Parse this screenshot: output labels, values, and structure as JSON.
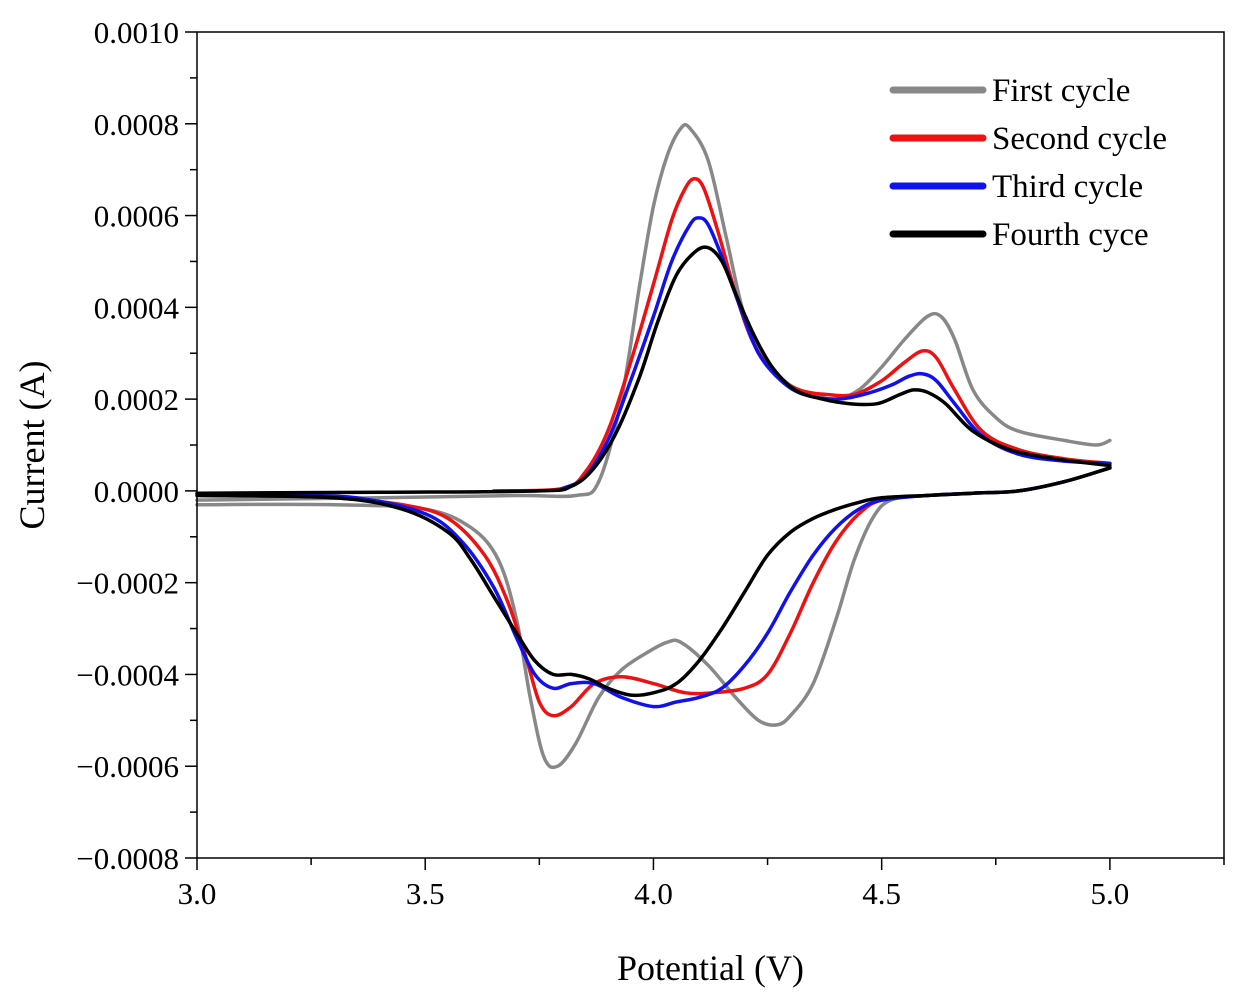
{
  "chart_data": {
    "type": "line",
    "title": "",
    "xlabel": "Potential (V)",
    "ylabel": "Current (A)",
    "xlim": [
      3.0,
      5.25
    ],
    "ylim": [
      -0.0008,
      0.001
    ],
    "x_ticks": [
      3.0,
      3.5,
      4.0,
      4.5,
      5.0
    ],
    "x_tick_labels": [
      "3.0",
      "3.5",
      "4.0",
      "4.5",
      "5.0"
    ],
    "y_ticks": [
      0.001,
      0.0008,
      0.0006,
      0.0004,
      0.0002,
      0.0,
      -0.0002,
      -0.0004,
      -0.0006,
      -0.0008
    ],
    "y_tick_labels": [
      "0.0010",
      "0.0008",
      "0.0006",
      "0.0004",
      "0.0002",
      "0.0000",
      "−0.0002",
      "−0.0004",
      "−0.0006",
      "−0.0008"
    ],
    "grid": false,
    "legend_position": "top-right",
    "series": [
      {
        "name": "First cycle",
        "color": "#888888",
        "anodic": [
          [
            3.0,
            -2e-05
          ],
          [
            3.4,
            -1.5e-05
          ],
          [
            3.7,
            -1e-05
          ],
          [
            3.83,
            -1e-05
          ],
          [
            3.88,
            2e-05
          ],
          [
            3.93,
            0.0002
          ],
          [
            3.97,
            0.00045
          ],
          [
            4.0,
            0.00062
          ],
          [
            4.03,
            0.00073
          ],
          [
            4.06,
            0.00079
          ],
          [
            4.08,
            0.00079
          ],
          [
            4.12,
            0.00072
          ],
          [
            4.16,
            0.00055
          ],
          [
            4.2,
            0.00038
          ],
          [
            4.25,
            0.00028
          ],
          [
            4.3,
            0.00023
          ],
          [
            4.35,
            0.00021
          ],
          [
            4.4,
            0.0002
          ],
          [
            4.45,
            0.00022
          ],
          [
            4.5,
            0.00027
          ],
          [
            4.55,
            0.00033
          ],
          [
            4.6,
            0.00038
          ],
          [
            4.63,
            0.00038
          ],
          [
            4.66,
            0.00033
          ],
          [
            4.7,
            0.00022
          ],
          [
            4.75,
            0.00016
          ],
          [
            4.8,
            0.00013
          ],
          [
            4.9,
            0.00011
          ],
          [
            4.97,
            0.0001
          ],
          [
            5.0,
            0.00011
          ]
        ],
        "cathodic": [
          [
            5.0,
            5e-05
          ],
          [
            4.9,
            2e-05
          ],
          [
            4.8,
            0.0
          ],
          [
            4.7,
            -5e-06
          ],
          [
            4.6,
            -1e-05
          ],
          [
            4.52,
            -2e-05
          ],
          [
            4.48,
            -6e-05
          ],
          [
            4.44,
            -0.00015
          ],
          [
            4.4,
            -0.00028
          ],
          [
            4.35,
            -0.00042
          ],
          [
            4.3,
            -0.00049
          ],
          [
            4.27,
            -0.00051
          ],
          [
            4.23,
            -0.0005
          ],
          [
            4.18,
            -0.00045
          ],
          [
            4.12,
            -0.00038
          ],
          [
            4.06,
            -0.00033
          ],
          [
            4.03,
            -0.00033
          ],
          [
            3.99,
            -0.00035
          ],
          [
            3.93,
            -0.00039
          ],
          [
            3.88,
            -0.00045
          ],
          [
            3.83,
            -0.00055
          ],
          [
            3.79,
            -0.0006
          ],
          [
            3.76,
            -0.00058
          ],
          [
            3.73,
            -0.00045
          ],
          [
            3.7,
            -0.00028
          ],
          [
            3.66,
            -0.00015
          ],
          [
            3.6,
            -8e-05
          ],
          [
            3.5,
            -4e-05
          ],
          [
            3.3,
            -3e-05
          ],
          [
            3.0,
            -3e-05
          ]
        ]
      },
      {
        "name": "Second cycle",
        "color": "#ee1111",
        "anodic": [
          [
            3.65,
            0.0
          ],
          [
            3.8,
            5e-06
          ],
          [
            3.85,
            4e-05
          ],
          [
            3.9,
            0.00013
          ],
          [
            3.95,
            0.00028
          ],
          [
            4.0,
            0.00045
          ],
          [
            4.04,
            0.00059
          ],
          [
            4.07,
            0.00066
          ],
          [
            4.09,
            0.00068
          ],
          [
            4.11,
            0.00066
          ],
          [
            4.14,
            0.00057
          ],
          [
            4.18,
            0.00043
          ],
          [
            4.22,
            0.00032
          ],
          [
            4.27,
            0.00025
          ],
          [
            4.32,
            0.00022
          ],
          [
            4.38,
            0.00021
          ],
          [
            4.44,
            0.00021
          ],
          [
            4.5,
            0.00024
          ],
          [
            4.55,
            0.00028
          ],
          [
            4.59,
            0.000305
          ],
          [
            4.62,
            0.00029
          ],
          [
            4.66,
            0.00022
          ],
          [
            4.72,
            0.00013
          ],
          [
            4.8,
            9e-05
          ],
          [
            4.9,
            7e-05
          ],
          [
            5.0,
            6e-05
          ]
        ],
        "cathodic": [
          [
            5.0,
            5e-05
          ],
          [
            4.9,
            2e-05
          ],
          [
            4.8,
            0.0
          ],
          [
            4.7,
            -5e-06
          ],
          [
            4.6,
            -1e-05
          ],
          [
            4.5,
            -2e-05
          ],
          [
            4.45,
            -5e-05
          ],
          [
            4.4,
            -0.00011
          ],
          [
            4.35,
            -0.0002
          ],
          [
            4.3,
            -0.00031
          ],
          [
            4.25,
            -0.0004
          ],
          [
            4.2,
            -0.00043
          ],
          [
            4.13,
            -0.00044
          ],
          [
            4.07,
            -0.00044
          ],
          [
            4.0,
            -0.00042
          ],
          [
            3.93,
            -0.000405
          ],
          [
            3.87,
            -0.00042
          ],
          [
            3.82,
            -0.00047
          ],
          [
            3.78,
            -0.00049
          ],
          [
            3.75,
            -0.00046
          ],
          [
            3.72,
            -0.00036
          ],
          [
            3.68,
            -0.00024
          ],
          [
            3.63,
            -0.00014
          ],
          [
            3.55,
            -6e-05
          ],
          [
            3.45,
            -3e-05
          ],
          [
            3.3,
            -1.5e-05
          ],
          [
            3.15,
            -1e-05
          ]
        ]
      },
      {
        "name": "Third cycle",
        "color": "#1111ee",
        "anodic": [
          [
            3.8,
            5e-06
          ],
          [
            3.85,
            3e-05
          ],
          [
            3.9,
            0.00011
          ],
          [
            3.95,
            0.00024
          ],
          [
            4.0,
            0.00038
          ],
          [
            4.04,
            0.0005
          ],
          [
            4.08,
            0.00058
          ],
          [
            4.1,
            0.000595
          ],
          [
            4.12,
            0.00058
          ],
          [
            4.15,
            0.00051
          ],
          [
            4.19,
            0.0004
          ],
          [
            4.23,
            0.0003
          ],
          [
            4.28,
            0.00024
          ],
          [
            4.33,
            0.00021
          ],
          [
            4.4,
            0.0002
          ],
          [
            4.46,
            0.00021
          ],
          [
            4.52,
            0.00023
          ],
          [
            4.56,
            0.00025
          ],
          [
            4.59,
            0.000255
          ],
          [
            4.62,
            0.00024
          ],
          [
            4.66,
            0.00019
          ],
          [
            4.72,
            0.00012
          ],
          [
            4.8,
            8e-05
          ],
          [
            4.9,
            6.5e-05
          ],
          [
            5.0,
            6e-05
          ]
        ],
        "cathodic": [
          [
            5.0,
            5e-05
          ],
          [
            4.9,
            2e-05
          ],
          [
            4.8,
            0.0
          ],
          [
            4.7,
            -5e-06
          ],
          [
            4.6,
            -1e-05
          ],
          [
            4.5,
            -2e-05
          ],
          [
            4.45,
            -4e-05
          ],
          [
            4.4,
            -8e-05
          ],
          [
            4.35,
            -0.00014
          ],
          [
            4.3,
            -0.00022
          ],
          [
            4.25,
            -0.00031
          ],
          [
            4.2,
            -0.00038
          ],
          [
            4.15,
            -0.00043
          ],
          [
            4.1,
            -0.00045
          ],
          [
            4.05,
            -0.00046
          ],
          [
            4.0,
            -0.00047
          ],
          [
            3.93,
            -0.00045
          ],
          [
            3.87,
            -0.00042
          ],
          [
            3.82,
            -0.00042
          ],
          [
            3.78,
            -0.00043
          ],
          [
            3.74,
            -0.0004
          ],
          [
            3.7,
            -0.00032
          ],
          [
            3.65,
            -0.00021
          ],
          [
            3.58,
            -0.00011
          ],
          [
            3.5,
            -5e-05
          ],
          [
            3.35,
            -1.5e-05
          ],
          [
            3.2,
            -1e-05
          ]
        ]
      },
      {
        "name": "Fourth cyce",
        "color": "#000000",
        "anodic": [
          [
            3.0,
            -5e-06
          ],
          [
            3.4,
            -3e-06
          ],
          [
            3.75,
            0.0
          ],
          [
            3.82,
            1e-05
          ],
          [
            3.87,
            5e-05
          ],
          [
            3.92,
            0.00013
          ],
          [
            3.97,
            0.00025
          ],
          [
            4.01,
            0.00037
          ],
          [
            4.05,
            0.00047
          ],
          [
            4.09,
            0.00052
          ],
          [
            4.12,
            0.00053
          ],
          [
            4.15,
            0.0005
          ],
          [
            4.18,
            0.00043
          ],
          [
            4.22,
            0.00034
          ],
          [
            4.26,
            0.00027
          ],
          [
            4.31,
            0.00022
          ],
          [
            4.37,
            0.0002
          ],
          [
            4.43,
            0.00019
          ],
          [
            4.49,
            0.00019
          ],
          [
            4.54,
            0.00021
          ],
          [
            4.57,
            0.00022
          ],
          [
            4.6,
            0.000215
          ],
          [
            4.64,
            0.00019
          ],
          [
            4.7,
            0.00013
          ],
          [
            4.78,
            9e-05
          ],
          [
            4.88,
            7e-05
          ],
          [
            5.0,
            5.5e-05
          ]
        ],
        "cathodic": [
          [
            5.0,
            5e-05
          ],
          [
            4.9,
            2e-05
          ],
          [
            4.8,
            0.0
          ],
          [
            4.7,
            -5e-06
          ],
          [
            4.6,
            -1e-05
          ],
          [
            4.5,
            -1.5e-05
          ],
          [
            4.45,
            -2.5e-05
          ],
          [
            4.4,
            -4e-05
          ],
          [
            4.35,
            -6e-05
          ],
          [
            4.3,
            -9e-05
          ],
          [
            4.25,
            -0.00014
          ],
          [
            4.2,
            -0.00022
          ],
          [
            4.15,
            -0.0003
          ],
          [
            4.1,
            -0.00037
          ],
          [
            4.05,
            -0.00042
          ],
          [
            4.0,
            -0.00044
          ],
          [
            3.95,
            -0.000445
          ],
          [
            3.9,
            -0.00043
          ],
          [
            3.86,
            -0.00041
          ],
          [
            3.82,
            -0.0004
          ],
          [
            3.78,
            -0.0004
          ],
          [
            3.74,
            -0.00037
          ],
          [
            3.7,
            -0.00031
          ],
          [
            3.65,
            -0.00023
          ],
          [
            3.6,
            -0.00015
          ],
          [
            3.55,
            -9e-05
          ],
          [
            3.45,
            -4e-05
          ],
          [
            3.3,
            -1.5e-05
          ],
          [
            3.0,
            -1e-05
          ]
        ]
      }
    ]
  }
}
